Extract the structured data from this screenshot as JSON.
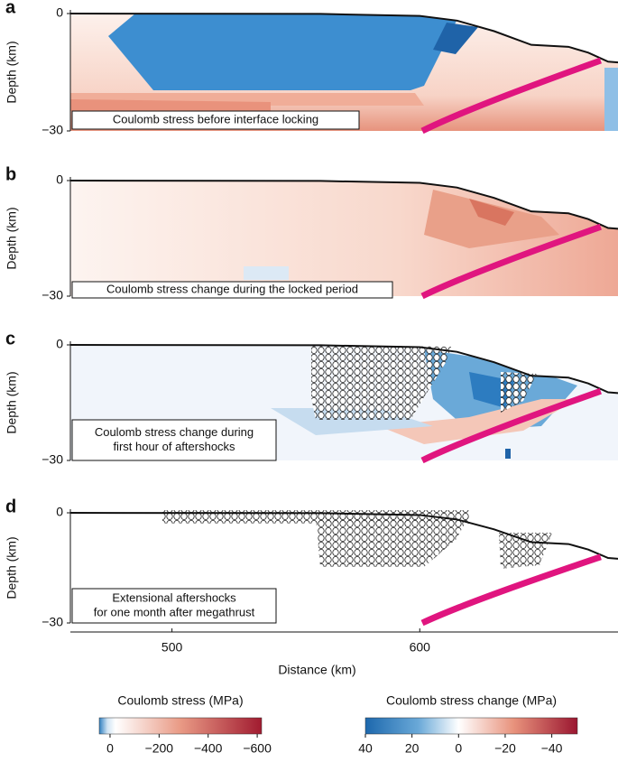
{
  "chart_data": {
    "type": "section-panels",
    "xlabel": "Distance (km)",
    "xlim": [
      459,
      680
    ],
    "xticks": [
      500,
      600
    ],
    "ylim": [
      -30,
      0
    ],
    "panels": [
      {
        "label": "a",
        "ylabel": "Depth (km)",
        "yticks": [
          0,
          {
            "value": -30,
            "label": "−30"
          }
        ],
        "caption": [
          "Coulomb stress before interface locking"
        ]
      },
      {
        "label": "b",
        "ylabel": "Depth (km)",
        "yticks": [
          0,
          {
            "value": -30,
            "label": "−30"
          }
        ],
        "caption": [
          "Coulomb stress change during the locked period"
        ]
      },
      {
        "label": "c",
        "ylabel": "Depth (km)",
        "yticks": [
          0,
          {
            "value": -30,
            "label": "−30"
          }
        ],
        "caption": [
          "Coulomb stress change during",
          "first hour of aftershocks"
        ]
      },
      {
        "label": "d",
        "ylabel": "Depth (km)",
        "yticks": [
          0,
          {
            "value": -30,
            "label": "−30"
          }
        ],
        "caption": [
          "Extensional aftershocks",
          "for one month after megathrust"
        ]
      }
    ],
    "colorbars": [
      {
        "title": "Coulomb stress (MPa)",
        "xlim": [
          44,
          -618
        ],
        "ticks": [
          0,
          {
            "value": -200,
            "label": "−200"
          },
          {
            "value": -400,
            "label": "−400"
          },
          {
            "value": -600,
            "label": "−600"
          }
        ]
      },
      {
        "title": "Coulomb stress change (MPa)",
        "xlim": [
          40,
          -51
        ],
        "ticks": [
          40,
          20,
          0,
          {
            "value": -20,
            "label": "−20"
          },
          {
            "value": -40,
            "label": "−40"
          }
        ]
      }
    ]
  }
}
